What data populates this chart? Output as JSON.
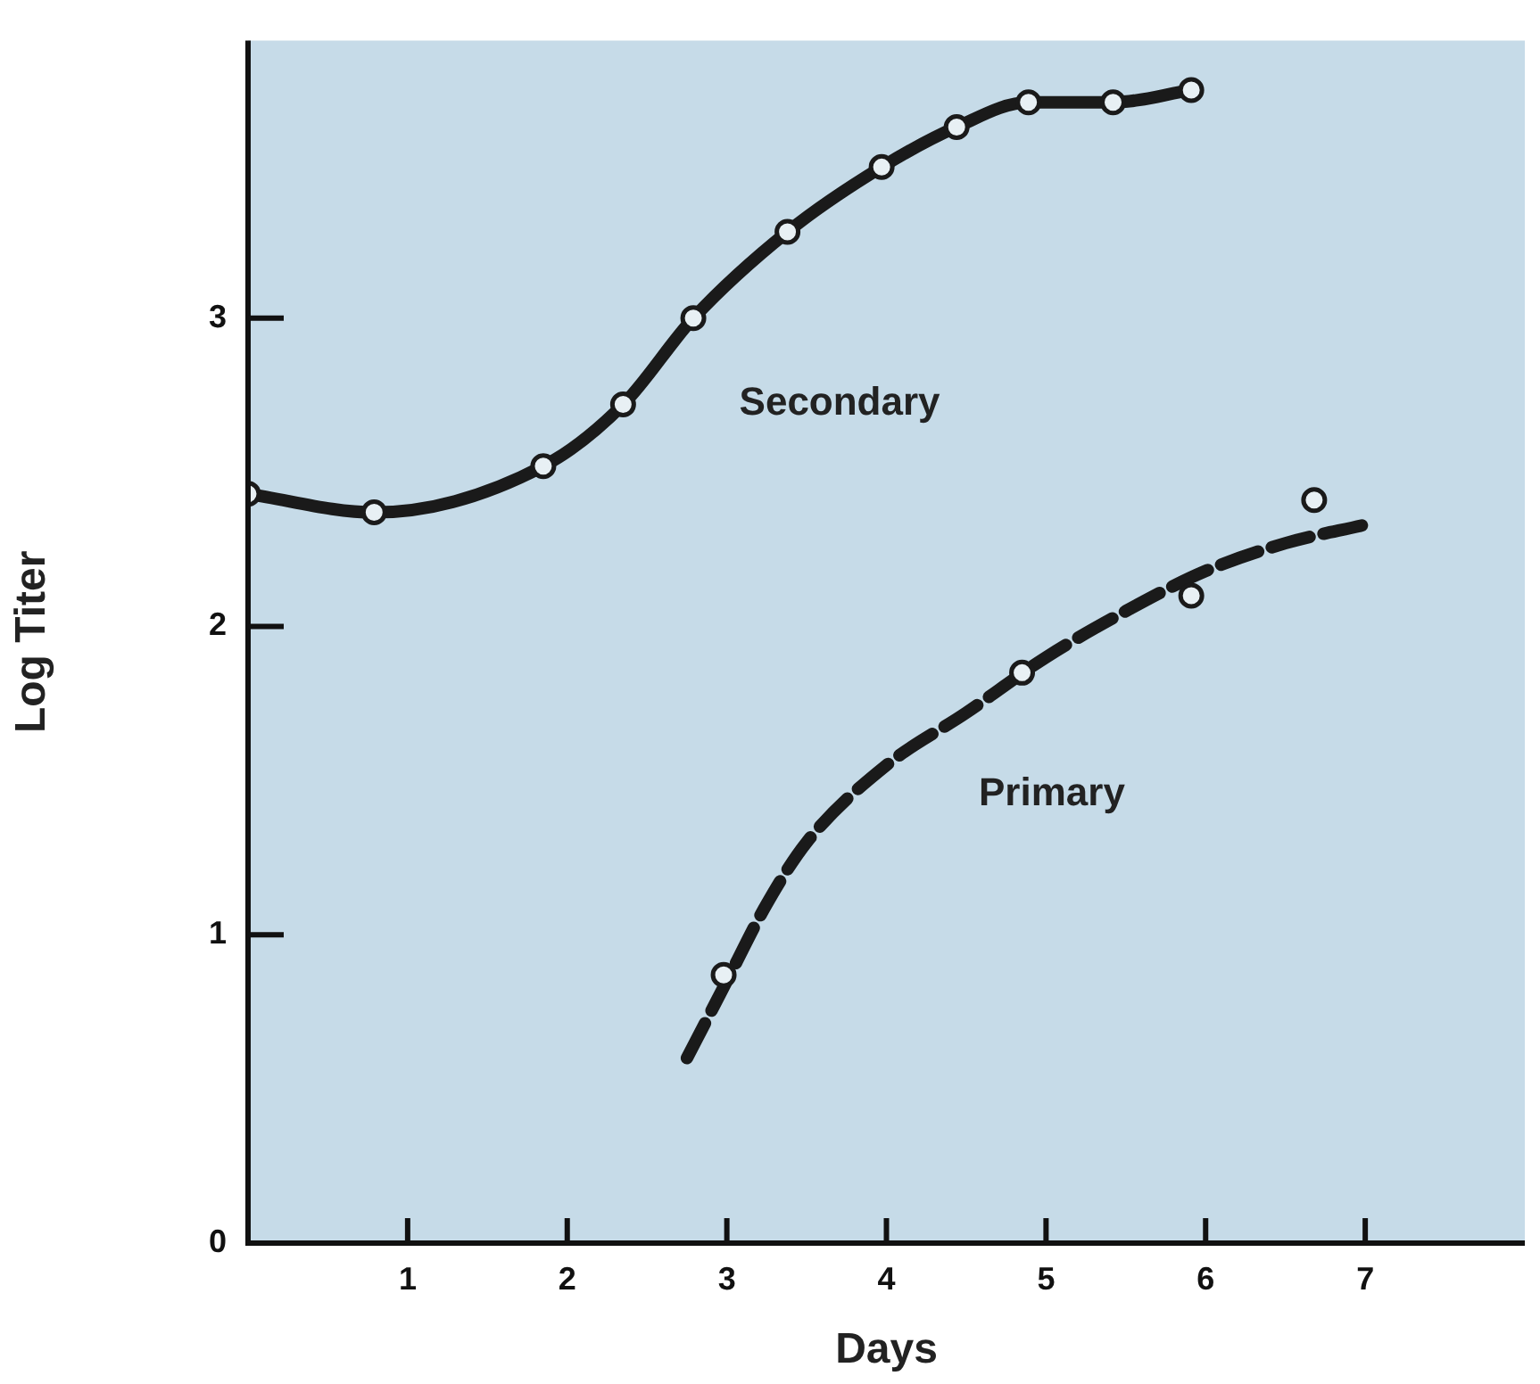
{
  "chart_data": {
    "type": "line",
    "xlabel": "Days",
    "ylabel": "Log Titer",
    "xlim": [
      0,
      8
    ],
    "xticks": [
      1,
      2,
      3,
      4,
      5,
      6,
      7
    ],
    "ylim": [
      0,
      3.9
    ],
    "yticks": [
      0,
      1,
      2,
      3
    ],
    "grid": false,
    "legend": false,
    "series": [
      {
        "name": "Secondary",
        "color": "#1a1a1a",
        "marker": "circle",
        "line_style": "solid",
        "x": [
          0,
          0.79,
          1.85,
          2.35,
          2.79,
          3.38,
          3.97,
          4.44,
          4.89,
          5.42,
          5.91
        ],
        "values": [
          2.43,
          2.37,
          2.52,
          2.72,
          3.0,
          3.28,
          3.49,
          3.62,
          3.7,
          3.7,
          3.74
        ]
      },
      {
        "name": "Primary",
        "color": "#1a1a1a",
        "marker": "none",
        "line_style": "dashed",
        "x": [
          2.75,
          3.0,
          3.25,
          3.5,
          4.0,
          4.5,
          5.0,
          5.5,
          6.0,
          6.5,
          7.0
        ],
        "values": [
          0.6,
          0.85,
          1.1,
          1.3,
          1.55,
          1.72,
          1.9,
          2.05,
          2.18,
          2.27,
          2.33
        ]
      },
      {
        "type": "scatter",
        "color": "#1a1a1a",
        "marker": "circle",
        "x": [
          2.98,
          4.85,
          5.91,
          6.68
        ],
        "values": [
          0.87,
          1.85,
          2.1,
          2.41
        ]
      }
    ]
  }
}
